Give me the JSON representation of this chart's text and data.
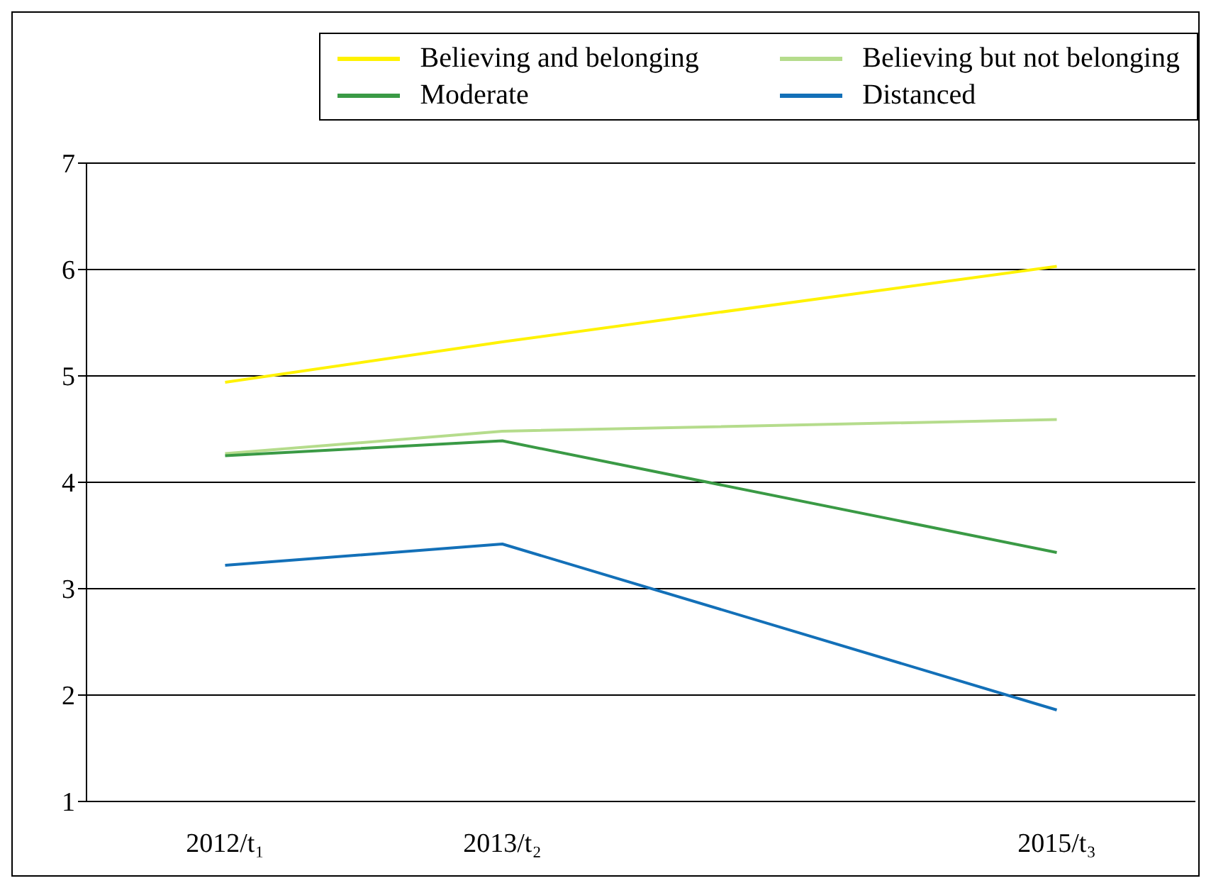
{
  "chart_data": {
    "type": "line",
    "categories": [
      "2012/t₁",
      "2013/t₂",
      null,
      "2015/t₃"
    ],
    "series": [
      {
        "name": "Believing and belonging",
        "color": "#fff200",
        "values": [
          4.94,
          5.32,
          null,
          6.03
        ]
      },
      {
        "name": "Believing but not belonging",
        "color": "#b5dc8c",
        "values": [
          4.27,
          4.48,
          null,
          4.59
        ]
      },
      {
        "name": "Moderate",
        "color": "#3a9a45",
        "values": [
          4.25,
          4.39,
          null,
          3.34
        ]
      },
      {
        "name": "Distanced",
        "color": "#1370b8",
        "values": [
          3.22,
          3.42,
          null,
          1.86
        ]
      }
    ],
    "ylim": [
      1,
      7
    ],
    "yticks": [
      1,
      2,
      3,
      4,
      5,
      6,
      7
    ],
    "grid": "y",
    "legend": "top right",
    "marker": "none",
    "line_style": "solid"
  }
}
